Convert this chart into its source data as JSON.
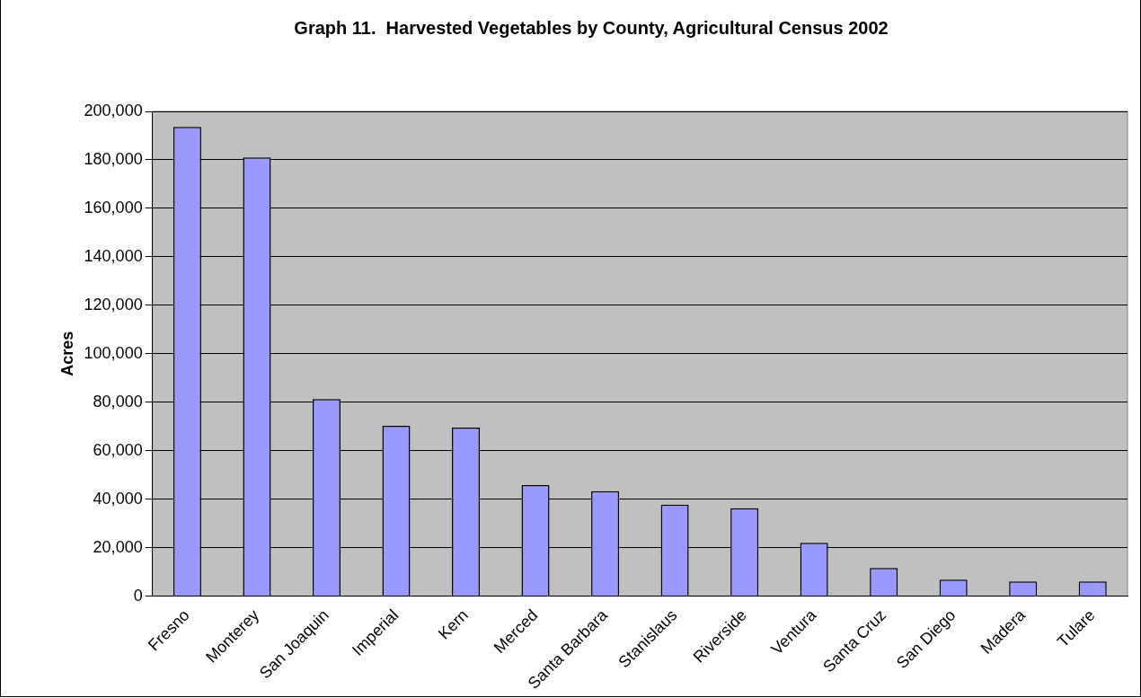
{
  "chart_data": {
    "type": "bar",
    "title": "Graph 11.  Harvested Vegetables by County, Agricultural Census 2002",
    "ylabel": "Acres",
    "categories": [
      "Fresno",
      "Monterey",
      "San Joaquin",
      "Imperial",
      "Kern",
      "Merced",
      "Santa Barbara",
      "Stanislaus",
      "Riverside",
      "Ventura",
      "Santa Cruz",
      "San Diego",
      "Madera",
      "Tulare"
    ],
    "values": [
      193600,
      181000,
      81300,
      70300,
      69500,
      45800,
      43300,
      37800,
      36300,
      22000,
      11600,
      6800,
      6100,
      6100
    ],
    "color": "#9999ff",
    "ylim": [
      0,
      200000
    ],
    "yticks": [
      0,
      {
        "value": 20000,
        "label": "20,000"
      },
      {
        "value": 40000,
        "label": "40,000"
      },
      {
        "value": 60000,
        "label": "60,000"
      },
      {
        "value": 80000,
        "label": "80,000"
      },
      {
        "value": 100000,
        "label": "100,000"
      },
      {
        "value": 120000,
        "label": "120,000"
      },
      {
        "value": 140000,
        "label": "140,000"
      },
      {
        "value": 160000,
        "label": "160,000"
      },
      {
        "value": 180000,
        "label": "180,000"
      },
      {
        "value": 200000,
        "label": "200,000"
      }
    ],
    "grid": "y",
    "legend": false
  }
}
